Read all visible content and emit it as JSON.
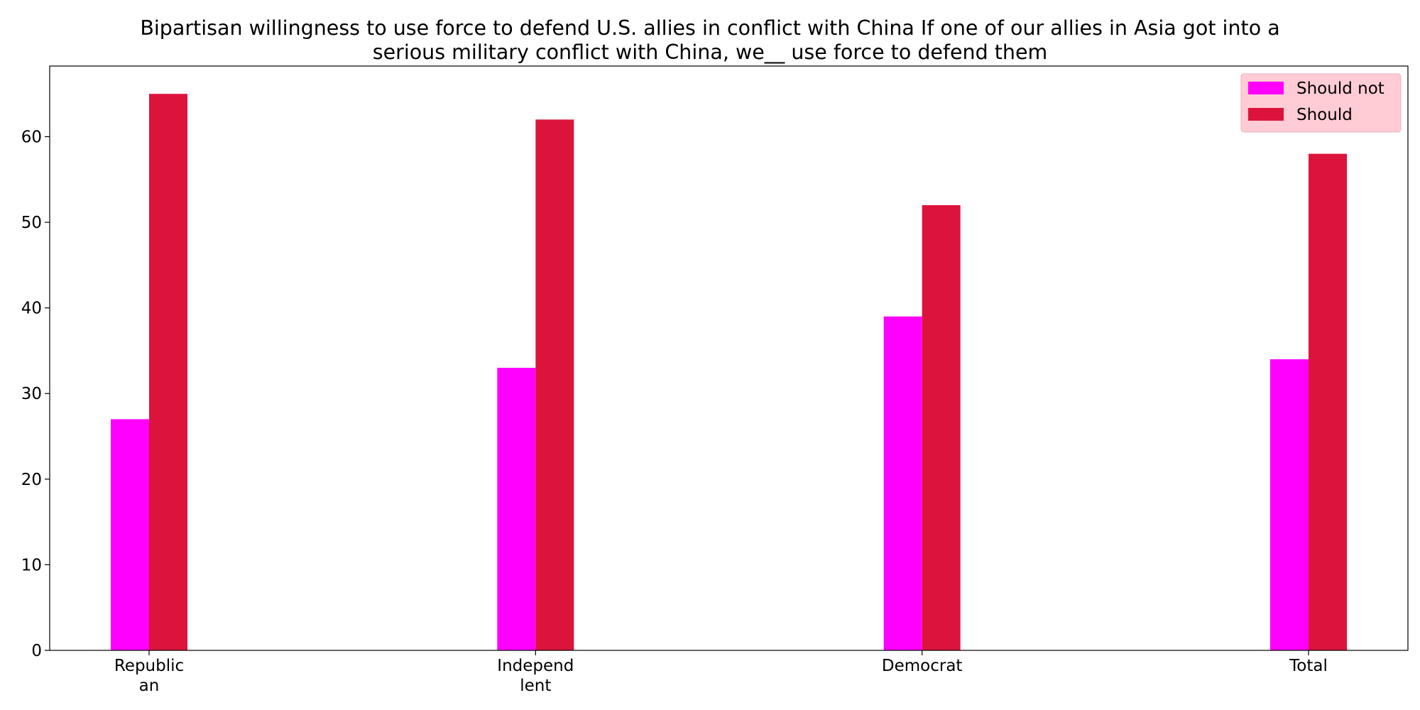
{
  "chart_data": {
    "type": "bar",
    "title_lines": [
      "Bipartisan willingness to use force to defend U.S. allies in conflict with China If one of our allies in Asia got into a",
      "serious military conflict with China, we__ use force to defend them"
    ],
    "categories": [
      [
        "Republic",
        "an"
      ],
      [
        "Independ",
        "lent"
      ],
      [
        "Democrat"
      ],
      [
        "Total"
      ]
    ],
    "series": [
      {
        "name": "Should not",
        "color": "#ff00ff",
        "values": [
          27,
          33,
          39,
          34
        ]
      },
      {
        "name": "Should",
        "color": "#dc143c",
        "values": [
          65,
          62,
          52,
          58
        ]
      }
    ],
    "ylim": [
      0,
      68.25
    ],
    "yticks": [
      0,
      10,
      20,
      30,
      40,
      50,
      60
    ],
    "xlabel": "",
    "ylabel": "",
    "grid": false,
    "legend": {
      "placement": "top-right",
      "background": "#ffc8d2"
    }
  }
}
